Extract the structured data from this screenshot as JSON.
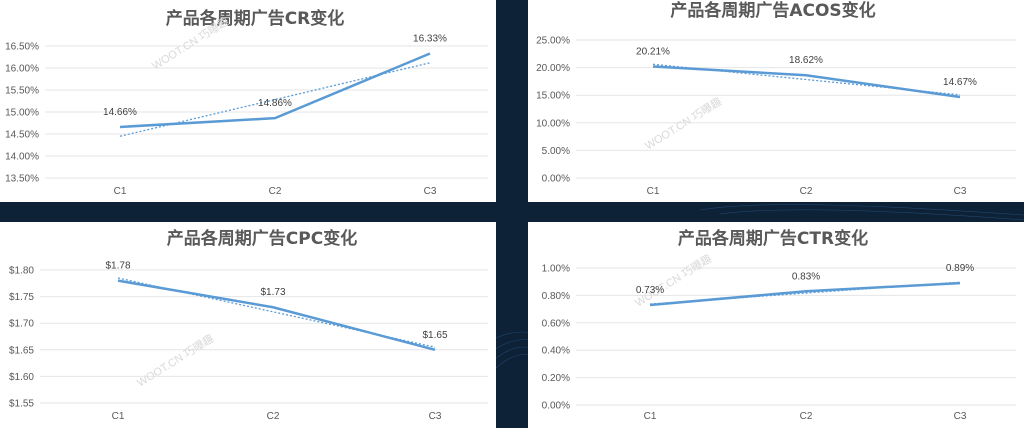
{
  "watermark": "WOOT.CN 巧曝趣",
  "chart_data": [
    {
      "type": "line",
      "title": "产品各周期广告CR变化",
      "categories": [
        "C1",
        "C2",
        "C3"
      ],
      "series": [
        {
          "values": [
            14.66,
            14.86,
            16.33
          ]
        }
      ],
      "data_labels": [
        "14.66%",
        "14.86%",
        "16.33%"
      ],
      "trendline": true,
      "yticks": [
        "13.50%",
        "14.00%",
        "14.50%",
        "15.00%",
        "15.50%",
        "16.00%",
        "16.50%"
      ],
      "ylim": [
        13.5,
        16.5
      ],
      "grid": true,
      "color": "#5b9bd5"
    },
    {
      "type": "line",
      "title": "产品各周期广告ACOS变化",
      "categories": [
        "C1",
        "C2",
        "C3"
      ],
      "series": [
        {
          "values": [
            20.21,
            18.62,
            14.67
          ]
        }
      ],
      "data_labels": [
        "20.21%",
        "18.62%",
        "14.67%"
      ],
      "trendline": true,
      "yticks": [
        "0.00%",
        "5.00%",
        "10.00%",
        "15.00%",
        "20.00%",
        "25.00%"
      ],
      "ylim": [
        0,
        25
      ],
      "grid": true,
      "color": "#5b9bd5"
    },
    {
      "type": "line",
      "title": "产品各周期广告CPC变化",
      "categories": [
        "C1",
        "C2",
        "C3"
      ],
      "series": [
        {
          "values": [
            1.78,
            1.73,
            1.65
          ]
        }
      ],
      "data_labels": [
        "$1.78",
        "$1.73",
        "$1.65"
      ],
      "trendline": true,
      "yticks": [
        "$1.55",
        "$1.60",
        "$1.65",
        "$1.70",
        "$1.75",
        "$1.80"
      ],
      "ylim": [
        1.55,
        1.8
      ],
      "grid": true,
      "color": "#5b9bd5"
    },
    {
      "type": "line",
      "title": "产品各周期广告CTR变化",
      "categories": [
        "C1",
        "C2",
        "C3"
      ],
      "series": [
        {
          "values": [
            0.73,
            0.83,
            0.89
          ]
        }
      ],
      "data_labels": [
        "0.73%",
        "0.83%",
        "0.89%"
      ],
      "trendline": true,
      "yticks": [
        "0.00%",
        "0.20%",
        "0.40%",
        "0.60%",
        "0.80%",
        "1.00%"
      ],
      "ylim": [
        0,
        1.0
      ],
      "grid": true,
      "color": "#5b9bd5"
    }
  ]
}
